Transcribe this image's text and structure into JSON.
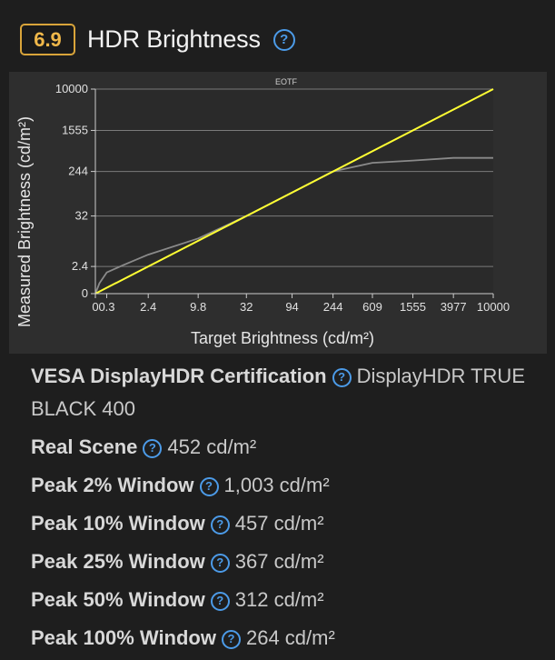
{
  "header": {
    "score": "6.9",
    "title": "HDR Brightness",
    "help_glyph": "?"
  },
  "chart_data": {
    "type": "line",
    "title": "EOTF",
    "xlabel": "Target Brightness (cd/m²)",
    "ylabel": "Measured Brightness (cd/m²)",
    "x_ticks": [
      "0",
      "0.3",
      "2.4",
      "9.8",
      "32",
      "94",
      "244",
      "609",
      "1555",
      "3977",
      "10000"
    ],
    "y_ticks": [
      "0",
      "2.4",
      "32",
      "244",
      "1555",
      "10000"
    ],
    "grid": "horizontal",
    "series": [
      {
        "color": "#ffff33",
        "x": [
          0,
          10000
        ],
        "y": [
          0,
          10000
        ]
      },
      {
        "color": "#8a8a8a",
        "x": [
          0,
          0.1,
          0.3,
          0.9,
          2.4,
          9.8,
          32,
          94,
          244,
          609,
          1555,
          3977,
          10000
        ],
        "y": [
          0,
          0.6,
          1.6,
          2.6,
          4.8,
          11,
          32,
          94,
          244,
          360,
          400,
          450,
          450
        ]
      }
    ]
  },
  "specs": [
    {
      "label": "VESA DisplayHDR Certification",
      "value": "DisplayHDR TRUE BLACK 400"
    },
    {
      "label": "Real Scene",
      "value": "452 cd/m²"
    },
    {
      "label": "Peak 2% Window",
      "value": "1,003 cd/m²"
    },
    {
      "label": "Peak 10% Window",
      "value": "457 cd/m²"
    },
    {
      "label": "Peak 25% Window",
      "value": "367 cd/m²"
    },
    {
      "label": "Peak 50% Window",
      "value": "312 cd/m²"
    },
    {
      "label": "Peak 100% Window",
      "value": "264 cd/m²"
    }
  ]
}
